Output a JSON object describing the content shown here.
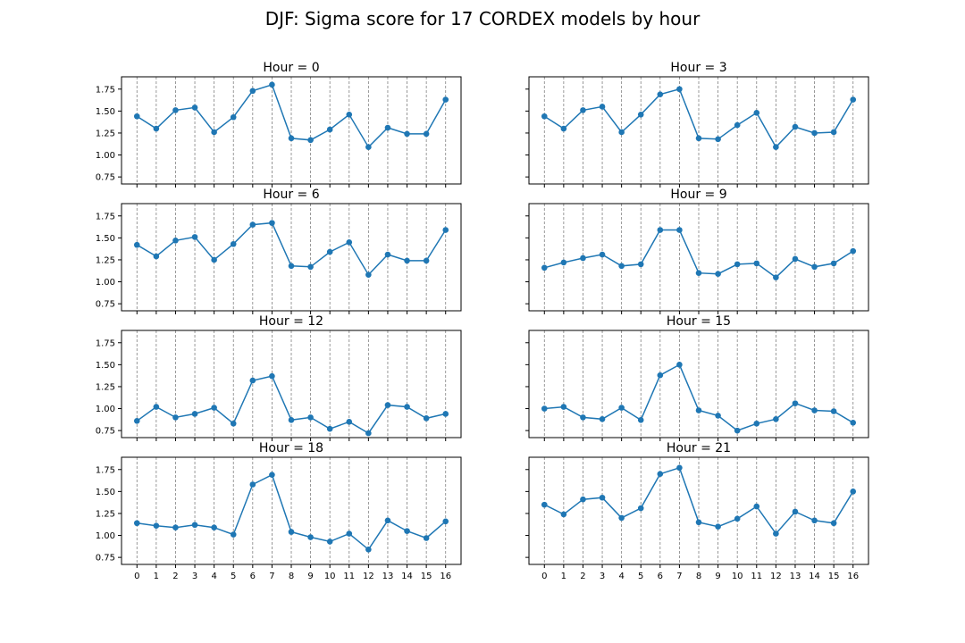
{
  "figure": {
    "title": "DJF: Sigma score for 17 CORDEX models by hour",
    "line_color": "#1f77b4",
    "vline_color": "#808080"
  },
  "chart_data": [
    {
      "type": "line",
      "title": "Hour = 0",
      "x": [
        0,
        1,
        2,
        3,
        4,
        5,
        6,
        7,
        8,
        9,
        10,
        11,
        12,
        13,
        14,
        15,
        16
      ],
      "y": [
        1.44,
        1.3,
        1.51,
        1.54,
        1.26,
        1.43,
        1.73,
        1.8,
        1.19,
        1.17,
        1.29,
        1.46,
        1.09,
        1.31,
        1.24,
        1.24,
        1.63
      ],
      "ylim": [
        0.67,
        1.89
      ],
      "yticks": [
        "0.75",
        "1.00",
        "1.25",
        "1.50",
        "1.75"
      ],
      "xticks": [
        "0",
        "1",
        "2",
        "3",
        "4",
        "5",
        "6",
        "7",
        "8",
        "9",
        "10",
        "11",
        "12",
        "13",
        "14",
        "15",
        "16"
      ],
      "vertical_gridlines": "dashed at each x"
    },
    {
      "type": "line",
      "title": "Hour = 3",
      "x": [
        0,
        1,
        2,
        3,
        4,
        5,
        6,
        7,
        8,
        9,
        10,
        11,
        12,
        13,
        14,
        15,
        16
      ],
      "y": [
        1.44,
        1.3,
        1.51,
        1.55,
        1.26,
        1.46,
        1.69,
        1.75,
        1.19,
        1.18,
        1.34,
        1.48,
        1.09,
        1.32,
        1.25,
        1.26,
        1.63
      ],
      "ylim": [
        0.67,
        1.89
      ],
      "yticks": [
        "0.75",
        "1.00",
        "1.25",
        "1.50",
        "1.75"
      ],
      "xticks": [
        "0",
        "1",
        "2",
        "3",
        "4",
        "5",
        "6",
        "7",
        "8",
        "9",
        "10",
        "11",
        "12",
        "13",
        "14",
        "15",
        "16"
      ],
      "vertical_gridlines": "dashed at each x"
    },
    {
      "type": "line",
      "title": "Hour = 6",
      "x": [
        0,
        1,
        2,
        3,
        4,
        5,
        6,
        7,
        8,
        9,
        10,
        11,
        12,
        13,
        14,
        15,
        16
      ],
      "y": [
        1.42,
        1.29,
        1.47,
        1.51,
        1.25,
        1.43,
        1.65,
        1.67,
        1.18,
        1.17,
        1.34,
        1.45,
        1.08,
        1.31,
        1.24,
        1.24,
        1.59
      ],
      "ylim": [
        0.67,
        1.89
      ],
      "yticks": [
        "0.75",
        "1.00",
        "1.25",
        "1.50",
        "1.75"
      ],
      "xticks": [
        "0",
        "1",
        "2",
        "3",
        "4",
        "5",
        "6",
        "7",
        "8",
        "9",
        "10",
        "11",
        "12",
        "13",
        "14",
        "15",
        "16"
      ],
      "vertical_gridlines": "dashed at each x"
    },
    {
      "type": "line",
      "title": "Hour = 9",
      "x": [
        0,
        1,
        2,
        3,
        4,
        5,
        6,
        7,
        8,
        9,
        10,
        11,
        12,
        13,
        14,
        15,
        16
      ],
      "y": [
        1.16,
        1.22,
        1.27,
        1.31,
        1.18,
        1.2,
        1.59,
        1.59,
        1.1,
        1.09,
        1.2,
        1.21,
        1.05,
        1.26,
        1.17,
        1.21,
        1.35
      ],
      "ylim": [
        0.67,
        1.89
      ],
      "yticks": [
        "0.75",
        "1.00",
        "1.25",
        "1.50",
        "1.75"
      ],
      "xticks": [
        "0",
        "1",
        "2",
        "3",
        "4",
        "5",
        "6",
        "7",
        "8",
        "9",
        "10",
        "11",
        "12",
        "13",
        "14",
        "15",
        "16"
      ],
      "vertical_gridlines": "dashed at each x"
    },
    {
      "type": "line",
      "title": "Hour = 12",
      "x": [
        0,
        1,
        2,
        3,
        4,
        5,
        6,
        7,
        8,
        9,
        10,
        11,
        12,
        13,
        14,
        15,
        16
      ],
      "y": [
        0.86,
        1.02,
        0.9,
        0.94,
        1.01,
        0.83,
        1.32,
        1.37,
        0.87,
        0.9,
        0.77,
        0.85,
        0.72,
        1.04,
        1.02,
        0.89,
        0.94
      ],
      "ylim": [
        0.67,
        1.89
      ],
      "yticks": [
        "0.75",
        "1.00",
        "1.25",
        "1.50",
        "1.75"
      ],
      "xticks": [
        "0",
        "1",
        "2",
        "3",
        "4",
        "5",
        "6",
        "7",
        "8",
        "9",
        "10",
        "11",
        "12",
        "13",
        "14",
        "15",
        "16"
      ],
      "vertical_gridlines": "dashed at each x"
    },
    {
      "type": "line",
      "title": "Hour = 15",
      "x": [
        0,
        1,
        2,
        3,
        4,
        5,
        6,
        7,
        8,
        9,
        10,
        11,
        12,
        13,
        14,
        15,
        16
      ],
      "y": [
        1.0,
        1.02,
        0.9,
        0.88,
        1.01,
        0.87,
        1.38,
        1.5,
        0.98,
        0.92,
        0.75,
        0.83,
        0.88,
        1.06,
        0.98,
        0.97,
        0.84
      ],
      "ylim": [
        0.67,
        1.89
      ],
      "yticks": [
        "0.75",
        "1.00",
        "1.25",
        "1.50",
        "1.75"
      ],
      "xticks": [
        "0",
        "1",
        "2",
        "3",
        "4",
        "5",
        "6",
        "7",
        "8",
        "9",
        "10",
        "11",
        "12",
        "13",
        "14",
        "15",
        "16"
      ],
      "vertical_gridlines": "dashed at each x"
    },
    {
      "type": "line",
      "title": "Hour = 18",
      "x": [
        0,
        1,
        2,
        3,
        4,
        5,
        6,
        7,
        8,
        9,
        10,
        11,
        12,
        13,
        14,
        15,
        16
      ],
      "y": [
        1.14,
        1.11,
        1.09,
        1.12,
        1.09,
        1.01,
        1.58,
        1.69,
        1.04,
        0.98,
        0.93,
        1.02,
        0.84,
        1.17,
        1.05,
        0.97,
        1.16
      ],
      "ylim": [
        0.67,
        1.89
      ],
      "yticks": [
        "0.75",
        "1.00",
        "1.25",
        "1.50",
        "1.75"
      ],
      "xticks": [
        "0",
        "1",
        "2",
        "3",
        "4",
        "5",
        "6",
        "7",
        "8",
        "9",
        "10",
        "11",
        "12",
        "13",
        "14",
        "15",
        "16"
      ],
      "vertical_gridlines": "dashed at each x"
    },
    {
      "type": "line",
      "title": "Hour = 21",
      "x": [
        0,
        1,
        2,
        3,
        4,
        5,
        6,
        7,
        8,
        9,
        10,
        11,
        12,
        13,
        14,
        15,
        16
      ],
      "y": [
        1.35,
        1.24,
        1.41,
        1.43,
        1.2,
        1.31,
        1.7,
        1.77,
        1.15,
        1.1,
        1.19,
        1.33,
        1.02,
        1.27,
        1.17,
        1.14,
        1.5
      ],
      "ylim": [
        0.67,
        1.89
      ],
      "yticks": [
        "0.75",
        "1.00",
        "1.25",
        "1.50",
        "1.75"
      ],
      "xticks": [
        "0",
        "1",
        "2",
        "3",
        "4",
        "5",
        "6",
        "7",
        "8",
        "9",
        "10",
        "11",
        "12",
        "13",
        "14",
        "15",
        "16"
      ],
      "vertical_gridlines": "dashed at each x"
    }
  ]
}
